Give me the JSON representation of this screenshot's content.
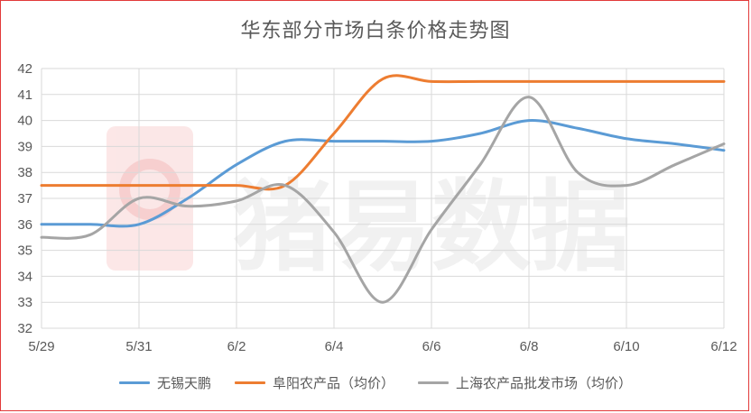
{
  "chart_data": {
    "type": "line",
    "title": "华东部分市场白条价格走势图",
    "xlabel": "",
    "ylabel": "",
    "x_ticks": [
      "5/29",
      "5/31",
      "6/2",
      "6/4",
      "6/6",
      "6/8",
      "6/10",
      "6/12"
    ],
    "ylim": [
      32,
      42
    ],
    "y_ticks": [
      32,
      33,
      34,
      35,
      36,
      37,
      38,
      39,
      40,
      41,
      42
    ],
    "grid": true,
    "legend_position": "bottom",
    "watermark": "猪易数据",
    "series": [
      {
        "name": "无锡天鹏",
        "color": "#5b9bd5",
        "points": [
          [
            0,
            36.0
          ],
          [
            1,
            36.0
          ],
          [
            2,
            36.0
          ],
          [
            3,
            37.0
          ],
          [
            4,
            38.3
          ],
          [
            5,
            39.2
          ],
          [
            6,
            39.2
          ],
          [
            7,
            39.2
          ],
          [
            8,
            39.2
          ],
          [
            9,
            39.5
          ],
          [
            10,
            40.0
          ],
          [
            11,
            39.7
          ],
          [
            12,
            39.3
          ],
          [
            13,
            39.1
          ],
          [
            14,
            38.85
          ]
        ]
      },
      {
        "name": "阜阳农产品（均价）",
        "color": "#ed7d31",
        "points": [
          [
            0,
            37.5
          ],
          [
            1,
            37.5
          ],
          [
            2,
            37.5
          ],
          [
            3,
            37.5
          ],
          [
            4,
            37.5
          ],
          [
            5,
            37.5
          ],
          [
            6,
            39.5
          ],
          [
            7,
            41.6
          ],
          [
            8,
            41.5
          ],
          [
            9,
            41.5
          ],
          [
            10,
            41.5
          ],
          [
            11,
            41.5
          ],
          [
            12,
            41.5
          ],
          [
            13,
            41.5
          ],
          [
            14,
            41.5
          ]
        ]
      },
      {
        "name": "上海农产品批发市场（均价）",
        "color": "#a5a5a5",
        "points": [
          [
            0,
            35.5
          ],
          [
            1,
            35.6
          ],
          [
            2,
            37.0
          ],
          [
            3,
            36.7
          ],
          [
            4,
            36.9
          ],
          [
            5,
            37.5
          ],
          [
            6,
            35.7
          ],
          [
            7,
            33.0
          ],
          [
            8,
            35.8
          ],
          [
            9,
            38.3
          ],
          [
            10,
            40.9
          ],
          [
            11,
            38.0
          ],
          [
            12,
            37.5
          ],
          [
            13,
            38.3
          ],
          [
            14,
            39.1
          ]
        ]
      }
    ]
  }
}
